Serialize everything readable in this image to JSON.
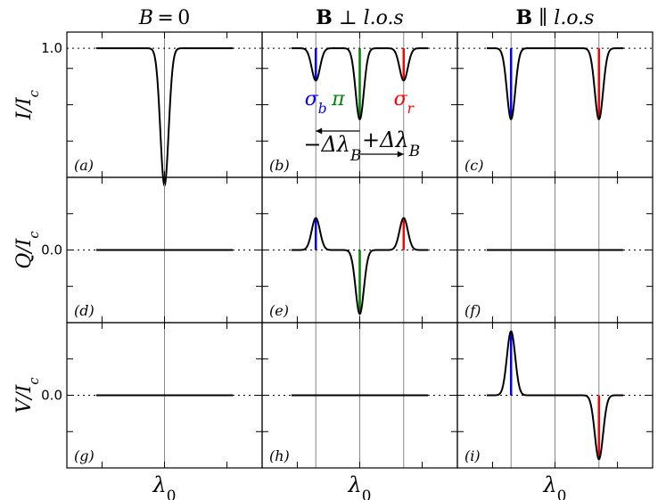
{
  "chart_data": {
    "type": "line",
    "description_free": true,
    "columns": [
      {
        "title": "B = 0",
        "title_parts": [
          {
            "t": "B",
            "style": "ital"
          },
          {
            "t": " = 0",
            "style": "normal"
          }
        ]
      },
      {
        "title": "B ⊥ l.o.s",
        "title_parts": [
          {
            "t": "B",
            "style": "bold"
          },
          {
            "t": " ⊥ ",
            "style": "normal"
          },
          {
            "t": "l.o.s",
            "style": "ital"
          }
        ]
      },
      {
        "title": "B ∥ l.o.s",
        "title_parts": [
          {
            "t": "B",
            "style": "bold"
          },
          {
            "t": " ∥ ",
            "style": "normal"
          },
          {
            "t": "l.o.s",
            "style": "ital"
          }
        ]
      }
    ],
    "rows": [
      {
        "ylabel": "I/I",
        "ylabel_sub": "c",
        "tick_label": "1.0",
        "tick_value": 1.0,
        "ylim": [
          0.2,
          1.1
        ]
      },
      {
        "ylabel": "Q/I",
        "ylabel_sub": "c",
        "tick_label": "0.0",
        "tick_value": 0.0,
        "ylim": [
          -0.5,
          0.5
        ]
      },
      {
        "ylabel": "V/I",
        "ylabel_sub": "c",
        "tick_label": "0.0",
        "tick_value": 0.0,
        "ylim": [
          -0.5,
          0.5
        ]
      }
    ],
    "x": {
      "label": "λ",
      "label_sub": "0",
      "center": 0,
      "xlim": [
        -5,
        5
      ],
      "shift": 2.25,
      "line_span": [
        -3.5,
        3.5
      ]
    },
    "panel_labels": [
      "(a)",
      "(b)",
      "(c)",
      "(d)",
      "(e)",
      "(f)",
      "(g)",
      "(h)",
      "(i)"
    ],
    "colors": {
      "sigma_b": "#0000ff",
      "pi": "#008000",
      "sigma_r": "#ff0000",
      "line": "#000000",
      "reference": "#888888"
    },
    "panels": [
      {
        "id": "a",
        "row": 0,
        "col": 0,
        "baseline": 1.0,
        "components": [
          {
            "center": 0,
            "amplitude": -0.85,
            "width": 0.3
          }
        ],
        "markers": []
      },
      {
        "id": "b",
        "row": 0,
        "col": 1,
        "baseline": 1.0,
        "components": [
          {
            "center": -2.25,
            "amplitude": -0.2,
            "width": 0.3
          },
          {
            "center": 0,
            "amplitude": -0.44,
            "width": 0.3
          },
          {
            "center": 2.25,
            "amplitude": -0.2,
            "width": 0.3
          }
        ],
        "markers": [
          {
            "x": -2.25,
            "color": "sigma_b"
          },
          {
            "x": 0,
            "color": "pi"
          },
          {
            "x": 2.25,
            "color": "sigma_r"
          }
        ]
      },
      {
        "id": "c",
        "row": 0,
        "col": 2,
        "baseline": 1.0,
        "components": [
          {
            "center": -2.25,
            "amplitude": -0.44,
            "width": 0.3
          },
          {
            "center": 2.25,
            "amplitude": -0.44,
            "width": 0.3
          }
        ],
        "markers": [
          {
            "x": -2.25,
            "color": "sigma_b"
          },
          {
            "x": 2.25,
            "color": "sigma_r"
          }
        ]
      },
      {
        "id": "d",
        "row": 1,
        "col": 0,
        "baseline": 0.0,
        "components": [],
        "markers": []
      },
      {
        "id": "e",
        "row": 1,
        "col": 1,
        "baseline": 0.0,
        "components": [
          {
            "center": -2.25,
            "amplitude": 0.22,
            "width": 0.3
          },
          {
            "center": 0,
            "amplitude": -0.44,
            "width": 0.3
          },
          {
            "center": 2.25,
            "amplitude": 0.22,
            "width": 0.3
          }
        ],
        "markers": [
          {
            "x": -2.25,
            "color": "sigma_b"
          },
          {
            "x": 0,
            "color": "pi"
          },
          {
            "x": 2.25,
            "color": "sigma_r"
          }
        ]
      },
      {
        "id": "f",
        "row": 1,
        "col": 2,
        "baseline": 0.0,
        "components": [],
        "markers": []
      },
      {
        "id": "g",
        "row": 2,
        "col": 0,
        "baseline": 0.0,
        "components": [],
        "markers": []
      },
      {
        "id": "h",
        "row": 2,
        "col": 1,
        "baseline": 0.0,
        "components": [],
        "markers": []
      },
      {
        "id": "i",
        "row": 2,
        "col": 2,
        "baseline": 0.0,
        "components": [
          {
            "center": -2.25,
            "amplitude": 0.44,
            "width": 0.3
          },
          {
            "center": 2.25,
            "amplitude": -0.44,
            "width": 0.3
          }
        ],
        "markers": [
          {
            "x": -2.25,
            "color": "sigma_b"
          },
          {
            "x": 2.25,
            "color": "sigma_r"
          }
        ]
      }
    ],
    "annotations": {
      "sigma_b": {
        "sym": "σ",
        "sub": "b",
        "color": "sigma_b"
      },
      "pi": {
        "sym": "π",
        "sub": "",
        "color": "pi"
      },
      "sigma_r": {
        "sym": "σ",
        "sub": "r",
        "color": "sigma_r"
      },
      "minus_shift": {
        "text": "−Δλ",
        "sub": "B"
      },
      "plus_shift": {
        "text": "+Δλ",
        "sub": "B"
      }
    }
  }
}
